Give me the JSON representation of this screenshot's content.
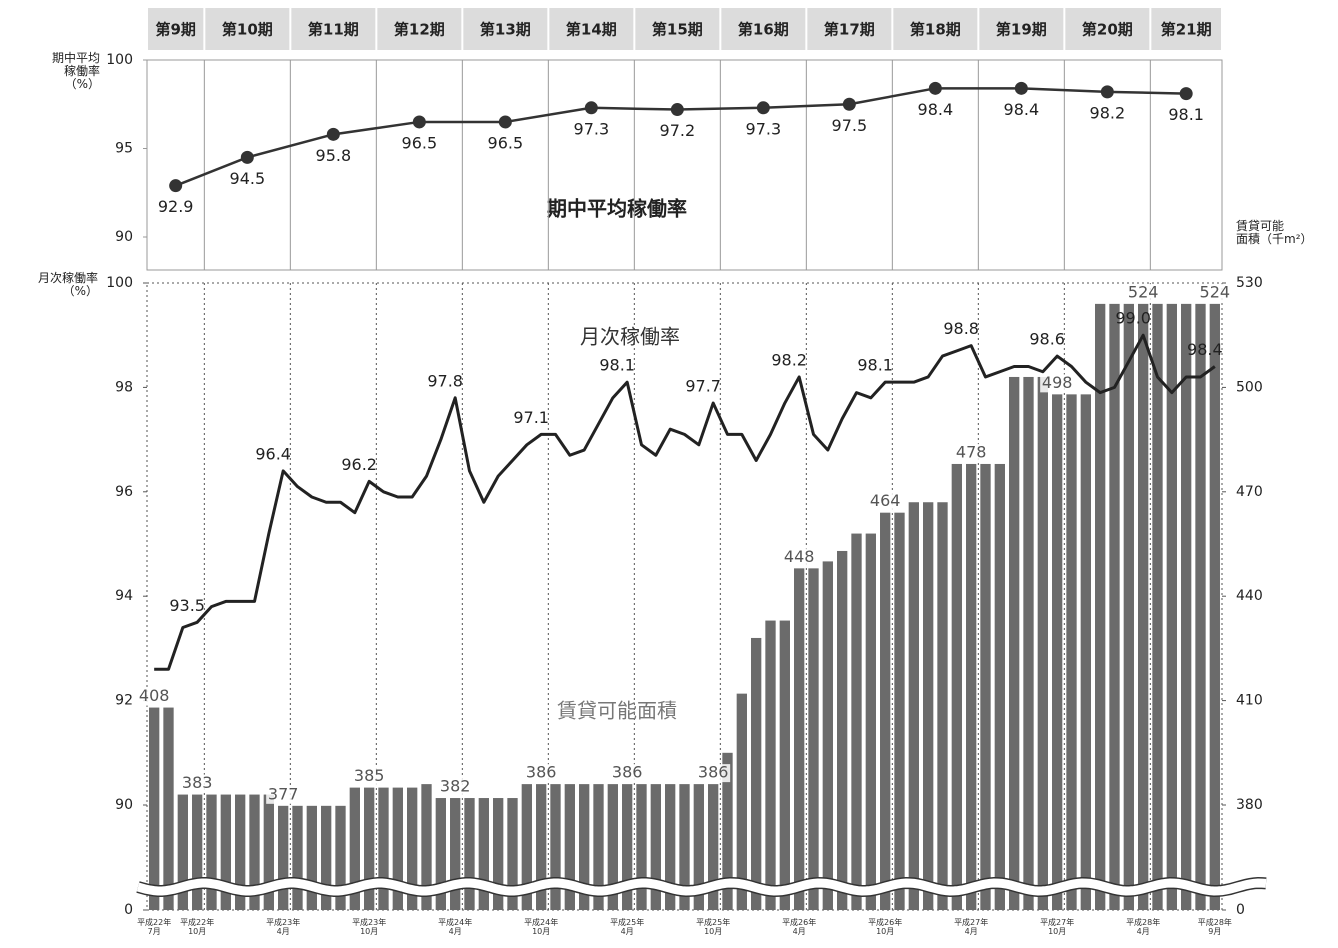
{
  "chart_data": [
    {
      "type": "line",
      "title": "期中平均稼働率",
      "y_label": "期中平均\n稼働率\n（%）",
      "categories": [
        "第9期",
        "第10期",
        "第11期",
        "第12期",
        "第13期",
        "第14期",
        "第15期",
        "第16期",
        "第17期",
        "第18期",
        "第19期",
        "第20期",
        "第21期"
      ],
      "values": [
        92.9,
        94.5,
        95.8,
        96.5,
        96.5,
        97.3,
        97.2,
        97.3,
        97.5,
        98.4,
        98.4,
        98.2,
        98.1
      ],
      "color": "#333333",
      "ylim": [
        90,
        100
      ],
      "yticks": [
        90,
        95,
        100
      ]
    },
    {
      "type": "combo",
      "y_label": "月次稼働率\n（%）",
      "y2_label": "賃貸可能\n面積（千m²）",
      "x": [
        "平成22年\n7月",
        null,
        null,
        "平成22年\n10月",
        null,
        null,
        null,
        null,
        null,
        "平成23年\n4月",
        null,
        null,
        null,
        null,
        null,
        "平成23年\n10月",
        null,
        null,
        null,
        null,
        null,
        "平成24年\n4月",
        null,
        null,
        null,
        null,
        null,
        "平成24年\n10月",
        null,
        null,
        null,
        null,
        null,
        "平成25年\n4月",
        null,
        null,
        null,
        null,
        null,
        "平成25年\n10月",
        null,
        null,
        null,
        null,
        null,
        "平成26年\n4月",
        null,
        null,
        null,
        null,
        null,
        "平成26年\n10月",
        null,
        null,
        null,
        null,
        null,
        "平成27年\n4月",
        null,
        null,
        null,
        null,
        null,
        "平成27年\n10月",
        null,
        null,
        null,
        null,
        null,
        "平成28年\n4月",
        null,
        null,
        null,
        null,
        "平成28年\n9月"
      ],
      "series": [
        {
          "name": "月次稼働率",
          "type": "line",
          "color": "#222222",
          "values": [
            92.6,
            92.6,
            93.4,
            93.5,
            93.8,
            93.9,
            93.9,
            93.9,
            95.2,
            96.4,
            96.1,
            95.9,
            95.8,
            95.8,
            95.6,
            96.2,
            96.0,
            95.9,
            95.9,
            96.3,
            97.0,
            97.8,
            96.4,
            95.8,
            96.3,
            96.6,
            96.9,
            97.1,
            97.1,
            96.7,
            96.8,
            97.3,
            97.8,
            98.1,
            96.9,
            96.7,
            97.2,
            97.1,
            96.9,
            97.7,
            97.1,
            97.1,
            96.6,
            97.1,
            97.7,
            98.2,
            97.1,
            96.8,
            97.4,
            97.9,
            97.8,
            98.1,
            98.1,
            98.1,
            98.2,
            98.6,
            98.7,
            98.8,
            98.2,
            98.3,
            98.4,
            98.4,
            98.3,
            98.6,
            98.4,
            98.1,
            97.9,
            98.0,
            98.5,
            99.0,
            98.2,
            97.9,
            98.2,
            98.2,
            98.4
          ],
          "value_labels": [
            null,
            null,
            null,
            "93.5",
            null,
            null,
            null,
            null,
            null,
            "96.4",
            null,
            null,
            null,
            null,
            null,
            "96.2",
            null,
            null,
            null,
            null,
            null,
            "97.8",
            null,
            null,
            null,
            null,
            null,
            "97.1",
            null,
            null,
            null,
            null,
            null,
            "98.1",
            null,
            null,
            null,
            null,
            null,
            "97.7",
            null,
            null,
            null,
            null,
            null,
            "98.2",
            null,
            null,
            null,
            null,
            null,
            "98.1",
            null,
            null,
            null,
            null,
            null,
            "98.8",
            null,
            null,
            null,
            null,
            null,
            "98.6",
            null,
            null,
            null,
            null,
            null,
            "99.0",
            null,
            null,
            null,
            null,
            "98.4"
          ]
        },
        {
          "name": "賃貸可能面積",
          "type": "bar",
          "color": "#6b6b6b",
          "axis": "y2",
          "values": [
            408,
            408,
            383,
            383,
            383,
            383,
            383,
            383,
            383,
            377,
            377,
            377,
            377,
            377,
            385,
            385,
            385,
            385,
            385,
            386,
            382,
            382,
            382,
            382,
            382,
            382,
            386,
            386,
            386,
            386,
            386,
            386,
            386,
            386,
            386,
            386,
            386,
            386,
            386,
            386,
            395,
            412,
            428,
            433,
            433,
            448,
            448,
            450,
            453,
            458,
            458,
            464,
            464,
            467,
            467,
            467,
            478,
            478,
            478,
            478,
            503,
            503,
            503,
            498,
            498,
            498,
            524,
            524,
            524,
            524,
            524,
            524,
            524,
            524,
            524
          ],
          "value_labels": [
            "408",
            null,
            null,
            "383",
            null,
            null,
            null,
            null,
            null,
            "377",
            null,
            null,
            null,
            null,
            null,
            "385",
            null,
            null,
            null,
            null,
            null,
            "382",
            null,
            null,
            null,
            null,
            null,
            "386",
            null,
            null,
            null,
            null,
            null,
            "386",
            null,
            null,
            null,
            null,
            null,
            "386",
            null,
            null,
            null,
            null,
            null,
            "448",
            null,
            null,
            null,
            null,
            null,
            "464",
            null,
            null,
            null,
            null,
            null,
            "478",
            null,
            null,
            null,
            null,
            null,
            "498",
            null,
            null,
            null,
            null,
            null,
            "524",
            null,
            null,
            null,
            null,
            "524"
          ]
        }
      ],
      "ylim": [
        0,
        100
      ],
      "yticks": [
        0,
        90,
        92,
        94,
        96,
        98,
        100
      ],
      "y2lim": [
        0,
        530
      ],
      "y2ticks": [
        0,
        380,
        410,
        440,
        470,
        500,
        530
      ],
      "axis_break": true
    }
  ]
}
